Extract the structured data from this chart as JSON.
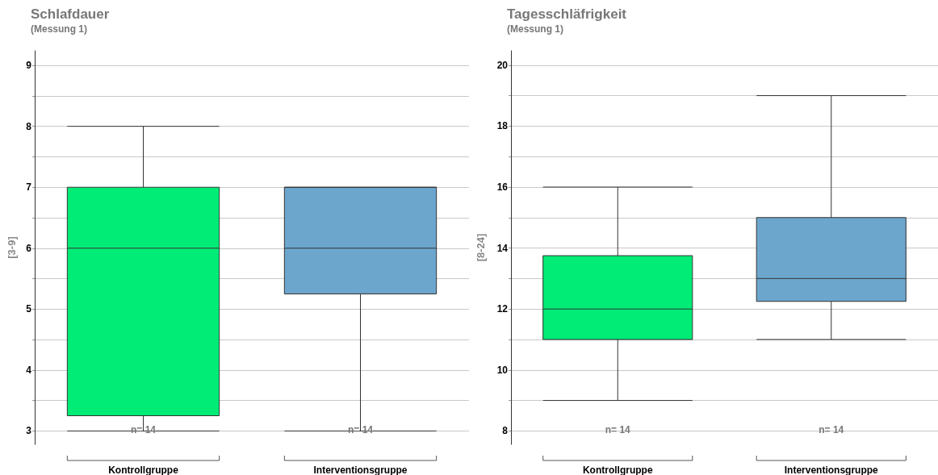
{
  "chart_data": [
    {
      "type": "box",
      "title": "Schlafdauer",
      "subtitle": "(Messung 1)",
      "ylabel": "[3-9]",
      "categories": [
        "Kontrollgruppe",
        "Interventionsgruppe"
      ],
      "boxes": [
        {
          "low": 3,
          "q1": 3.25,
          "median": 6,
          "q3": 7,
          "high": 8
        },
        {
          "low": 3,
          "q1": 5.25,
          "median": 6,
          "q3": 7,
          "high": 7
        }
      ],
      "colors": [
        "#00ec76",
        "#6ca6cd"
      ],
      "ylim": [
        2.78,
        9.24
      ],
      "yticks": [
        3,
        {
          "value": 3.5,
          "label": null
        },
        4,
        {
          "value": 4.5,
          "label": null
        },
        5,
        {
          "value": 5.5,
          "label": null
        },
        6,
        {
          "value": 6.5,
          "label": null
        },
        7,
        {
          "value": 7.5,
          "label": null
        },
        8,
        {
          "value": 8.5,
          "label": null
        },
        9
      ],
      "grid": "y",
      "annotations": [
        "n= 14",
        "n= 14"
      ]
    },
    {
      "type": "box",
      "title": "Tagesschläfrigkeit",
      "subtitle": "(Messung 1)",
      "ylabel": "[8-24]",
      "categories": [
        "Kontrollgruppe",
        "Interventionsgruppe"
      ],
      "boxes": [
        {
          "low": 9,
          "q1": 11,
          "median": 12,
          "q3": 13.75,
          "high": 16
        },
        {
          "low": 11,
          "q1": 12.25,
          "median": 13,
          "q3": 15,
          "high": 19
        }
      ],
      "colors": [
        "#00ec76",
        "#6ca6cd"
      ],
      "ylim": [
        7.56,
        20.47
      ],
      "yticks": [
        8,
        {
          "value": 9,
          "label": null
        },
        10,
        {
          "value": 11,
          "label": null
        },
        12,
        {
          "value": 13,
          "label": null
        },
        14,
        {
          "value": 15,
          "label": null
        },
        16,
        {
          "value": 17,
          "label": null
        },
        18,
        {
          "value": 19,
          "label": null
        },
        20
      ],
      "grid": "y",
      "annotations": [
        "n= 14",
        "n= 14"
      ]
    }
  ]
}
